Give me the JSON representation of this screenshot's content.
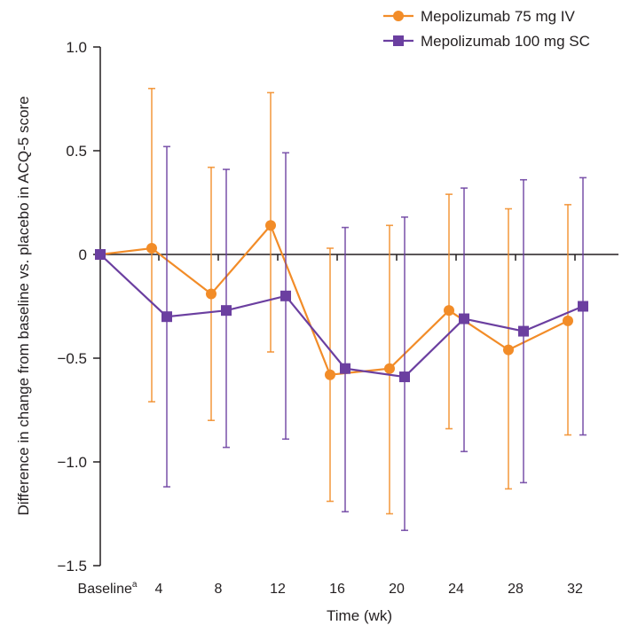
{
  "chart_data": {
    "type": "line",
    "title": "",
    "xlabel": "Time (wk)",
    "ylabel": "Difference in change from baseline vs. placebo in ACQ-5 score",
    "ylim": [
      -1.5,
      1.0
    ],
    "yticks": [
      1.0,
      0.5,
      0,
      -0.5,
      -1.0,
      -1.5
    ],
    "ytick_labels": [
      "1.0",
      "0.5",
      "0",
      "−0.5",
      "−1.0",
      "−1.5"
    ],
    "categories": [
      "Baseline",
      "4",
      "8",
      "12",
      "16",
      "20",
      "24",
      "28",
      "32"
    ],
    "baseline_superscript": "a",
    "grid": false,
    "legend_position": "top-right",
    "series": [
      {
        "name": "Mepolizumab 75 mg IV",
        "color": "#f28c28",
        "marker": "circle",
        "values": [
          0,
          0.03,
          -0.19,
          0.14,
          -0.58,
          -0.55,
          -0.27,
          -0.46,
          -0.32
        ],
        "ci_upper": [
          null,
          0.8,
          0.42,
          0.78,
          0.03,
          0.14,
          0.29,
          0.22,
          0.24
        ],
        "ci_lower": [
          null,
          -0.71,
          -0.8,
          -0.47,
          -1.19,
          -1.25,
          -0.84,
          -1.13,
          -0.87
        ]
      },
      {
        "name": "Mepolizumab 100 mg SC",
        "color": "#6b3fa0",
        "marker": "square",
        "values": [
          0,
          -0.3,
          -0.27,
          -0.2,
          -0.55,
          -0.59,
          -0.31,
          -0.37,
          -0.25
        ],
        "ci_upper": [
          null,
          0.52,
          0.41,
          0.49,
          0.13,
          0.18,
          0.32,
          0.36,
          0.37
        ],
        "ci_lower": [
          null,
          -1.12,
          -0.93,
          -0.89,
          -1.24,
          -1.33,
          -0.95,
          -1.1,
          -0.87
        ]
      }
    ]
  }
}
